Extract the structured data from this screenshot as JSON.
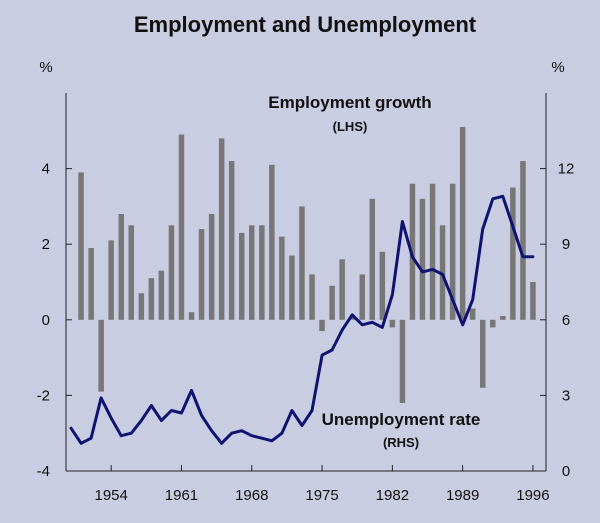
{
  "chart_data": {
    "type": "bar+line",
    "title": "Employment and Unemployment",
    "left_unit": "%",
    "right_unit": "%",
    "x_tick_labels": [
      "1954",
      "1961",
      "1968",
      "1975",
      "1982",
      "1989",
      "1996"
    ],
    "x_ticks": [
      1954,
      1961,
      1968,
      1975,
      1982,
      1989,
      1996
    ],
    "x_range": [
      1949.5,
      1997.3
    ],
    "left_axis": {
      "ylim": [
        -4,
        6
      ],
      "ticks": [
        -4,
        -2,
        0,
        2,
        4
      ]
    },
    "right_axis": {
      "ylim": [
        0,
        15
      ],
      "ticks": [
        0,
        3,
        6,
        9,
        12
      ]
    },
    "grid": false,
    "colors": {
      "background": "#c8cde2",
      "bars": "#777777",
      "line": "#0f1270",
      "axis": "#222222"
    },
    "series": [
      {
        "name": "Employment growth",
        "sub_label": "(LHS)",
        "kind": "bar",
        "axis": "left",
        "x": [
          1951,
          1952,
          1953,
          1954,
          1955,
          1956,
          1957,
          1958,
          1959,
          1960,
          1961,
          1962,
          1963,
          1964,
          1965,
          1966,
          1967,
          1968,
          1969,
          1970,
          1971,
          1972,
          1973,
          1974,
          1975,
          1976,
          1977,
          1978,
          1979,
          1980,
          1981,
          1982,
          1983,
          1984,
          1985,
          1986,
          1987,
          1988,
          1989,
          1990,
          1991,
          1992,
          1993,
          1994,
          1995,
          1996
        ],
        "values": [
          3.9,
          1.9,
          -1.9,
          2.1,
          2.8,
          2.5,
          0.7,
          1.1,
          1.3,
          2.5,
          4.9,
          0.2,
          2.4,
          2.8,
          4.8,
          4.2,
          2.3,
          2.5,
          2.5,
          4.1,
          2.2,
          1.7,
          3.0,
          1.2,
          -0.3,
          0.9,
          1.6,
          0.1,
          1.2,
          3.2,
          1.8,
          -0.2,
          -2.2,
          3.6,
          3.2,
          3.6,
          2.5,
          3.6,
          5.1,
          0.3,
          -1.8,
          -0.2,
          0.1,
          3.5,
          4.2,
          1.0
        ]
      },
      {
        "name": "Unemployment rate",
        "sub_label": "(RHS)",
        "kind": "line",
        "axis": "right",
        "x": [
          1950,
          1951,
          1952,
          1953,
          1954,
          1955,
          1956,
          1957,
          1958,
          1959,
          1960,
          1961,
          1962,
          1963,
          1964,
          1965,
          1966,
          1967,
          1968,
          1969,
          1970,
          1971,
          1972,
          1973,
          1974,
          1975,
          1976,
          1977,
          1978,
          1979,
          1980,
          1981,
          1982,
          1983,
          1984,
          1985,
          1986,
          1987,
          1988,
          1989,
          1990,
          1991,
          1992,
          1993,
          1994,
          1995,
          1996
        ],
        "values": [
          1.7,
          1.1,
          1.3,
          2.9,
          2.1,
          1.4,
          1.5,
          2.0,
          2.6,
          2.0,
          2.4,
          2.3,
          3.2,
          2.2,
          1.6,
          1.1,
          1.5,
          1.6,
          1.4,
          1.3,
          1.2,
          1.5,
          2.4,
          1.8,
          2.4,
          4.6,
          4.8,
          5.6,
          6.2,
          5.8,
          5.9,
          5.7,
          7.0,
          9.9,
          8.5,
          7.9,
          8.0,
          7.8,
          6.8,
          5.8,
          6.8,
          9.6,
          10.8,
          10.9,
          9.7,
          8.5,
          8.5
        ]
      }
    ]
  }
}
